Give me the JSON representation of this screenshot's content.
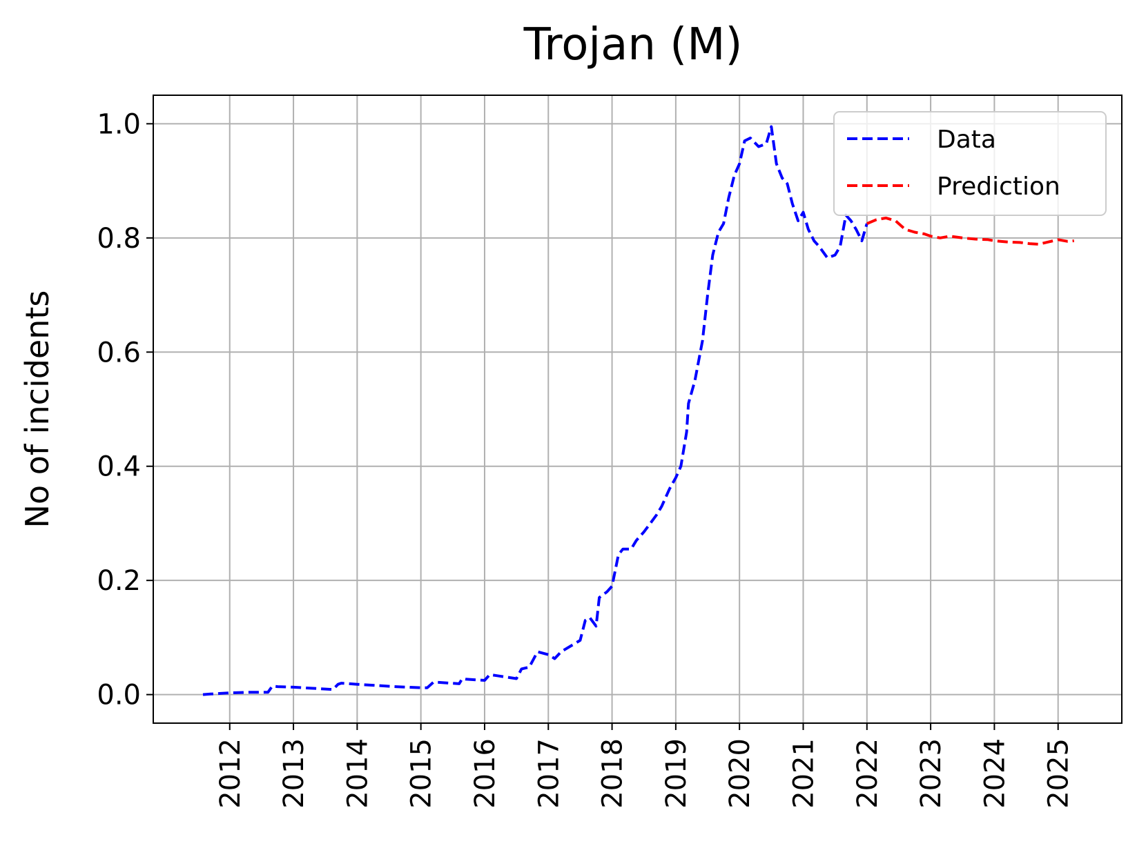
{
  "chart_data": {
    "type": "line",
    "title": "Trojan (M)",
    "xlabel": "",
    "ylabel": "No of incidents",
    "xlim": [
      2010.8,
      2026.0
    ],
    "ylim": [
      -0.05,
      1.05
    ],
    "xticks": [
      "2012",
      "2013",
      "2014",
      "2015",
      "2016",
      "2017",
      "2018",
      "2019",
      "2020",
      "2021",
      "2022",
      "2023",
      "2024",
      "2025"
    ],
    "yticks": [
      "0.0",
      "0.2",
      "0.4",
      "0.6",
      "0.8",
      "1.0"
    ],
    "grid": true,
    "legend_position": "top-right",
    "series": [
      {
        "name": "Data",
        "color": "#0000ff",
        "style": "dashed",
        "x": [
          2011.58,
          2011.7,
          2012.0,
          2012.3,
          2012.6,
          2012.67,
          2012.75,
          2013.0,
          2013.3,
          2013.62,
          2013.7,
          2013.75,
          2014.0,
          2014.3,
          2014.6,
          2015.0,
          2015.1,
          2015.2,
          2015.6,
          2015.65,
          2015.7,
          2016.0,
          2016.08,
          2016.2,
          2016.5,
          2016.58,
          2016.7,
          2016.83,
          2017.0,
          2017.1,
          2017.2,
          2017.5,
          2017.58,
          2017.65,
          2017.75,
          2017.8,
          2017.92,
          2018.0,
          2018.1,
          2018.17,
          2018.3,
          2018.38,
          2018.5,
          2018.6,
          2018.7,
          2018.78,
          2018.9,
          2019.0,
          2019.08,
          2019.17,
          2019.2,
          2019.3,
          2019.42,
          2019.5,
          2019.58,
          2019.67,
          2019.75,
          2019.83,
          2019.92,
          2020.0,
          2020.08,
          2020.17,
          2020.3,
          2020.42,
          2020.5,
          2020.58,
          2020.67,
          2020.75,
          2020.83,
          2020.92,
          2021.0,
          2021.08,
          2021.17,
          2021.25,
          2021.38,
          2021.5,
          2021.58,
          2021.67,
          2021.75,
          2021.83,
          2021.92,
          2022.0
        ],
        "y": [
          0.0,
          0.001,
          0.003,
          0.004,
          0.004,
          0.015,
          0.014,
          0.013,
          0.011,
          0.009,
          0.018,
          0.02,
          0.018,
          0.016,
          0.014,
          0.012,
          0.012,
          0.022,
          0.019,
          0.028,
          0.027,
          0.025,
          0.035,
          0.033,
          0.028,
          0.045,
          0.048,
          0.075,
          0.07,
          0.063,
          0.075,
          0.095,
          0.13,
          0.135,
          0.12,
          0.17,
          0.18,
          0.19,
          0.245,
          0.255,
          0.255,
          0.27,
          0.285,
          0.3,
          0.315,
          0.33,
          0.36,
          0.38,
          0.4,
          0.46,
          0.51,
          0.55,
          0.62,
          0.7,
          0.77,
          0.81,
          0.825,
          0.87,
          0.91,
          0.93,
          0.97,
          0.975,
          0.96,
          0.965,
          0.995,
          0.93,
          0.905,
          0.895,
          0.86,
          0.83,
          0.845,
          0.815,
          0.795,
          0.785,
          0.765,
          0.77,
          0.785,
          0.84,
          0.83,
          0.815,
          0.795,
          0.825
        ]
      },
      {
        "name": "Prediction",
        "color": "#ff0000",
        "style": "dashed",
        "x": [
          2022.0,
          2022.15,
          2022.3,
          2022.45,
          2022.6,
          2022.75,
          2022.9,
          2023.0,
          2023.15,
          2023.3,
          2023.5,
          2023.7,
          2023.9,
          2024.0,
          2024.2,
          2024.4,
          2024.55,
          2024.7,
          2024.85,
          2025.0,
          2025.15,
          2025.25
        ],
        "y": [
          0.825,
          0.832,
          0.835,
          0.83,
          0.815,
          0.81,
          0.807,
          0.803,
          0.8,
          0.803,
          0.8,
          0.798,
          0.797,
          0.795,
          0.793,
          0.792,
          0.79,
          0.789,
          0.793,
          0.797,
          0.794,
          0.795
        ]
      }
    ]
  }
}
